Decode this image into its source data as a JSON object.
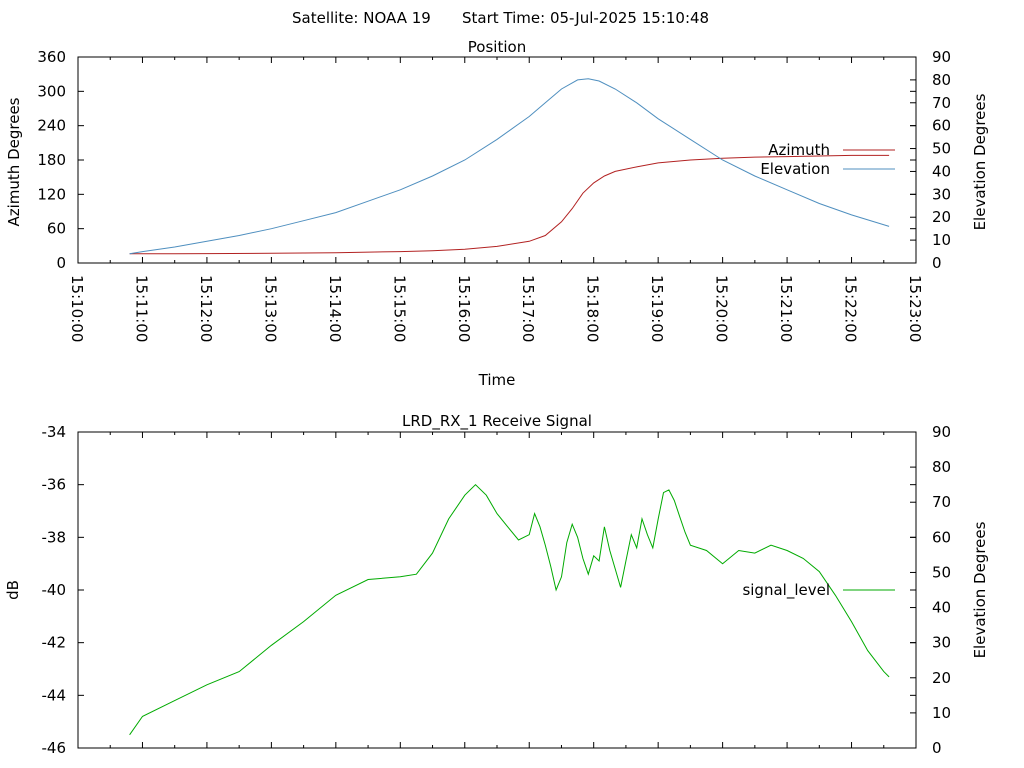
{
  "header": {
    "satellite_text": "Satellite: NOAA 19",
    "start_time_text": "Start Time: 05-Jul-2025 15:10:48"
  },
  "chart_data": [
    {
      "type": "line",
      "title": "Position",
      "xlabel": "Time",
      "ylabel": "Azimuth Degrees",
      "y2label": "Elevation Degrees",
      "xlim_minutes": [
        0,
        13
      ],
      "ylim": [
        0,
        360
      ],
      "y2lim": [
        0,
        90
      ],
      "yticks": [
        "0",
        "60",
        "120",
        "180",
        "240",
        "300",
        "360"
      ],
      "y2ticks": [
        "0",
        "10",
        "20",
        "30",
        "40",
        "50",
        "60",
        "70",
        "80",
        "90"
      ],
      "xticks": [
        "15:10:00",
        "15:11:00",
        "15:12:00",
        "15:13:00",
        "15:14:00",
        "15:15:00",
        "15:16:00",
        "15:17:00",
        "15:18:00",
        "15:19:00",
        "15:20:00",
        "15:21:00",
        "15:22:00",
        "15:23:00"
      ],
      "grid": false,
      "legend_position": "right",
      "series": [
        {
          "name": "Azimuth",
          "axis": "left",
          "color": "#b22222",
          "points": [
            [
              "15:10:48",
              16
            ],
            [
              "15:11:30",
              16
            ],
            [
              "15:12:00",
              16.5
            ],
            [
              "15:13:00",
              17
            ],
            [
              "15:14:00",
              18
            ],
            [
              "15:15:00",
              20
            ],
            [
              "15:15:30",
              21.5
            ],
            [
              "15:16:00",
              24
            ],
            [
              "15:16:30",
              29
            ],
            [
              "15:17:00",
              38
            ],
            [
              "15:17:15",
              48
            ],
            [
              "15:17:30",
              72
            ],
            [
              "15:17:40",
              95
            ],
            [
              "15:17:50",
              122
            ],
            [
              "15:18:00",
              140
            ],
            [
              "15:18:10",
              152
            ],
            [
              "15:18:20",
              160
            ],
            [
              "15:18:40",
              168
            ],
            [
              "15:19:00",
              175
            ],
            [
              "15:19:30",
              180
            ],
            [
              "15:20:00",
              183
            ],
            [
              "15:20:30",
              185
            ],
            [
              "15:21:00",
              186
            ],
            [
              "15:21:30",
              187
            ],
            [
              "15:22:00",
              188
            ],
            [
              "15:22:35",
              188
            ]
          ]
        },
        {
          "name": "Elevation",
          "axis": "right",
          "color": "#4f8fbf",
          "points": [
            [
              "15:10:48",
              4
            ],
            [
              "15:11:00",
              5
            ],
            [
              "15:11:30",
              7
            ],
            [
              "15:12:00",
              9.5
            ],
            [
              "15:12:30",
              12
            ],
            [
              "15:13:00",
              15
            ],
            [
              "15:13:30",
              18.5
            ],
            [
              "15:14:00",
              22
            ],
            [
              "15:14:30",
              27
            ],
            [
              "15:15:00",
              32
            ],
            [
              "15:15:30",
              38
            ],
            [
              "15:16:00",
              45
            ],
            [
              "15:16:30",
              54
            ],
            [
              "15:17:00",
              64
            ],
            [
              "15:17:15",
              70
            ],
            [
              "15:17:30",
              76
            ],
            [
              "15:17:45",
              80
            ],
            [
              "15:17:55",
              80.5
            ],
            [
              "15:18:05",
              79.5
            ],
            [
              "15:18:20",
              76
            ],
            [
              "15:18:40",
              70
            ],
            [
              "15:19:00",
              63
            ],
            [
              "15:19:30",
              54
            ],
            [
              "15:20:00",
              45
            ],
            [
              "15:20:30",
              38
            ],
            [
              "15:21:00",
              32
            ],
            [
              "15:21:30",
              26
            ],
            [
              "15:22:00",
              21
            ],
            [
              "15:22:35",
              16
            ]
          ]
        }
      ]
    },
    {
      "type": "line",
      "title": "LRD_RX_1 Receive Signal",
      "xlabel": "",
      "ylabel": "dB",
      "y2label": "Elevation Degrees",
      "xlim_minutes": [
        0,
        13
      ],
      "ylim": [
        -46,
        -34
      ],
      "y2lim": [
        0,
        90
      ],
      "yticks": [
        "-46",
        "-44",
        "-42",
        "-40",
        "-38",
        "-36",
        "-34"
      ],
      "y2ticks": [
        "0",
        "10",
        "20",
        "30",
        "40",
        "50",
        "60",
        "70",
        "80",
        "90"
      ],
      "grid": false,
      "legend_position": "right",
      "series": [
        {
          "name": "signal_level",
          "axis": "left",
          "color": "#00aa00",
          "points": [
            [
              "15:10:48",
              -45.5
            ],
            [
              "15:11:00",
              -44.8
            ],
            [
              "15:11:30",
              -44.2
            ],
            [
              "15:12:00",
              -43.6
            ],
            [
              "15:12:30",
              -43.1
            ],
            [
              "15:13:00",
              -42.1
            ],
            [
              "15:13:30",
              -41.2
            ],
            [
              "15:14:00",
              -40.2
            ],
            [
              "15:14:30",
              -39.6
            ],
            [
              "15:15:00",
              -39.5
            ],
            [
              "15:15:15",
              -39.4
            ],
            [
              "15:15:30",
              -38.6
            ],
            [
              "15:15:45",
              -37.3
            ],
            [
              "15:16:00",
              -36.4
            ],
            [
              "15:16:10",
              -36.0
            ],
            [
              "15:16:20",
              -36.4
            ],
            [
              "15:16:30",
              -37.1
            ],
            [
              "15:16:40",
              -37.6
            ],
            [
              "15:16:50",
              -38.1
            ],
            [
              "15:17:00",
              -37.9
            ],
            [
              "15:17:05",
              -37.1
            ],
            [
              "15:17:10",
              -37.6
            ],
            [
              "15:17:15",
              -38.3
            ],
            [
              "15:17:20",
              -39.1
            ],
            [
              "15:17:25",
              -40.0
            ],
            [
              "15:17:30",
              -39.5
            ],
            [
              "15:17:35",
              -38.2
            ],
            [
              "15:17:40",
              -37.5
            ],
            [
              "15:17:45",
              -38.0
            ],
            [
              "15:17:50",
              -38.8
            ],
            [
              "15:17:55",
              -39.4
            ],
            [
              "15:18:00",
              -38.7
            ],
            [
              "15:18:05",
              -38.9
            ],
            [
              "15:18:10",
              -37.6
            ],
            [
              "15:18:15",
              -38.5
            ],
            [
              "15:18:20",
              -39.2
            ],
            [
              "15:18:25",
              -39.9
            ],
            [
              "15:18:30",
              -38.9
            ],
            [
              "15:18:35",
              -37.9
            ],
            [
              "15:18:40",
              -38.4
            ],
            [
              "15:18:45",
              -37.3
            ],
            [
              "15:18:50",
              -37.9
            ],
            [
              "15:18:55",
              -38.4
            ],
            [
              "15:19:00",
              -37.3
            ],
            [
              "15:19:05",
              -36.3
            ],
            [
              "15:19:10",
              -36.2
            ],
            [
              "15:19:15",
              -36.6
            ],
            [
              "15:19:20",
              -37.2
            ],
            [
              "15:19:25",
              -37.8
            ],
            [
              "15:19:30",
              -38.3
            ],
            [
              "15:19:45",
              -38.5
            ],
            [
              "15:20:00",
              -39.0
            ],
            [
              "15:20:15",
              -38.5
            ],
            [
              "15:20:30",
              -38.6
            ],
            [
              "15:20:45",
              -38.3
            ],
            [
              "15:21:00",
              -38.5
            ],
            [
              "15:21:15",
              -38.8
            ],
            [
              "15:21:30",
              -39.3
            ],
            [
              "15:21:45",
              -40.2
            ],
            [
              "15:22:00",
              -41.2
            ],
            [
              "15:22:15",
              -42.3
            ],
            [
              "15:22:30",
              -43.1
            ],
            [
              "15:22:35",
              -43.3
            ]
          ]
        }
      ]
    }
  ]
}
